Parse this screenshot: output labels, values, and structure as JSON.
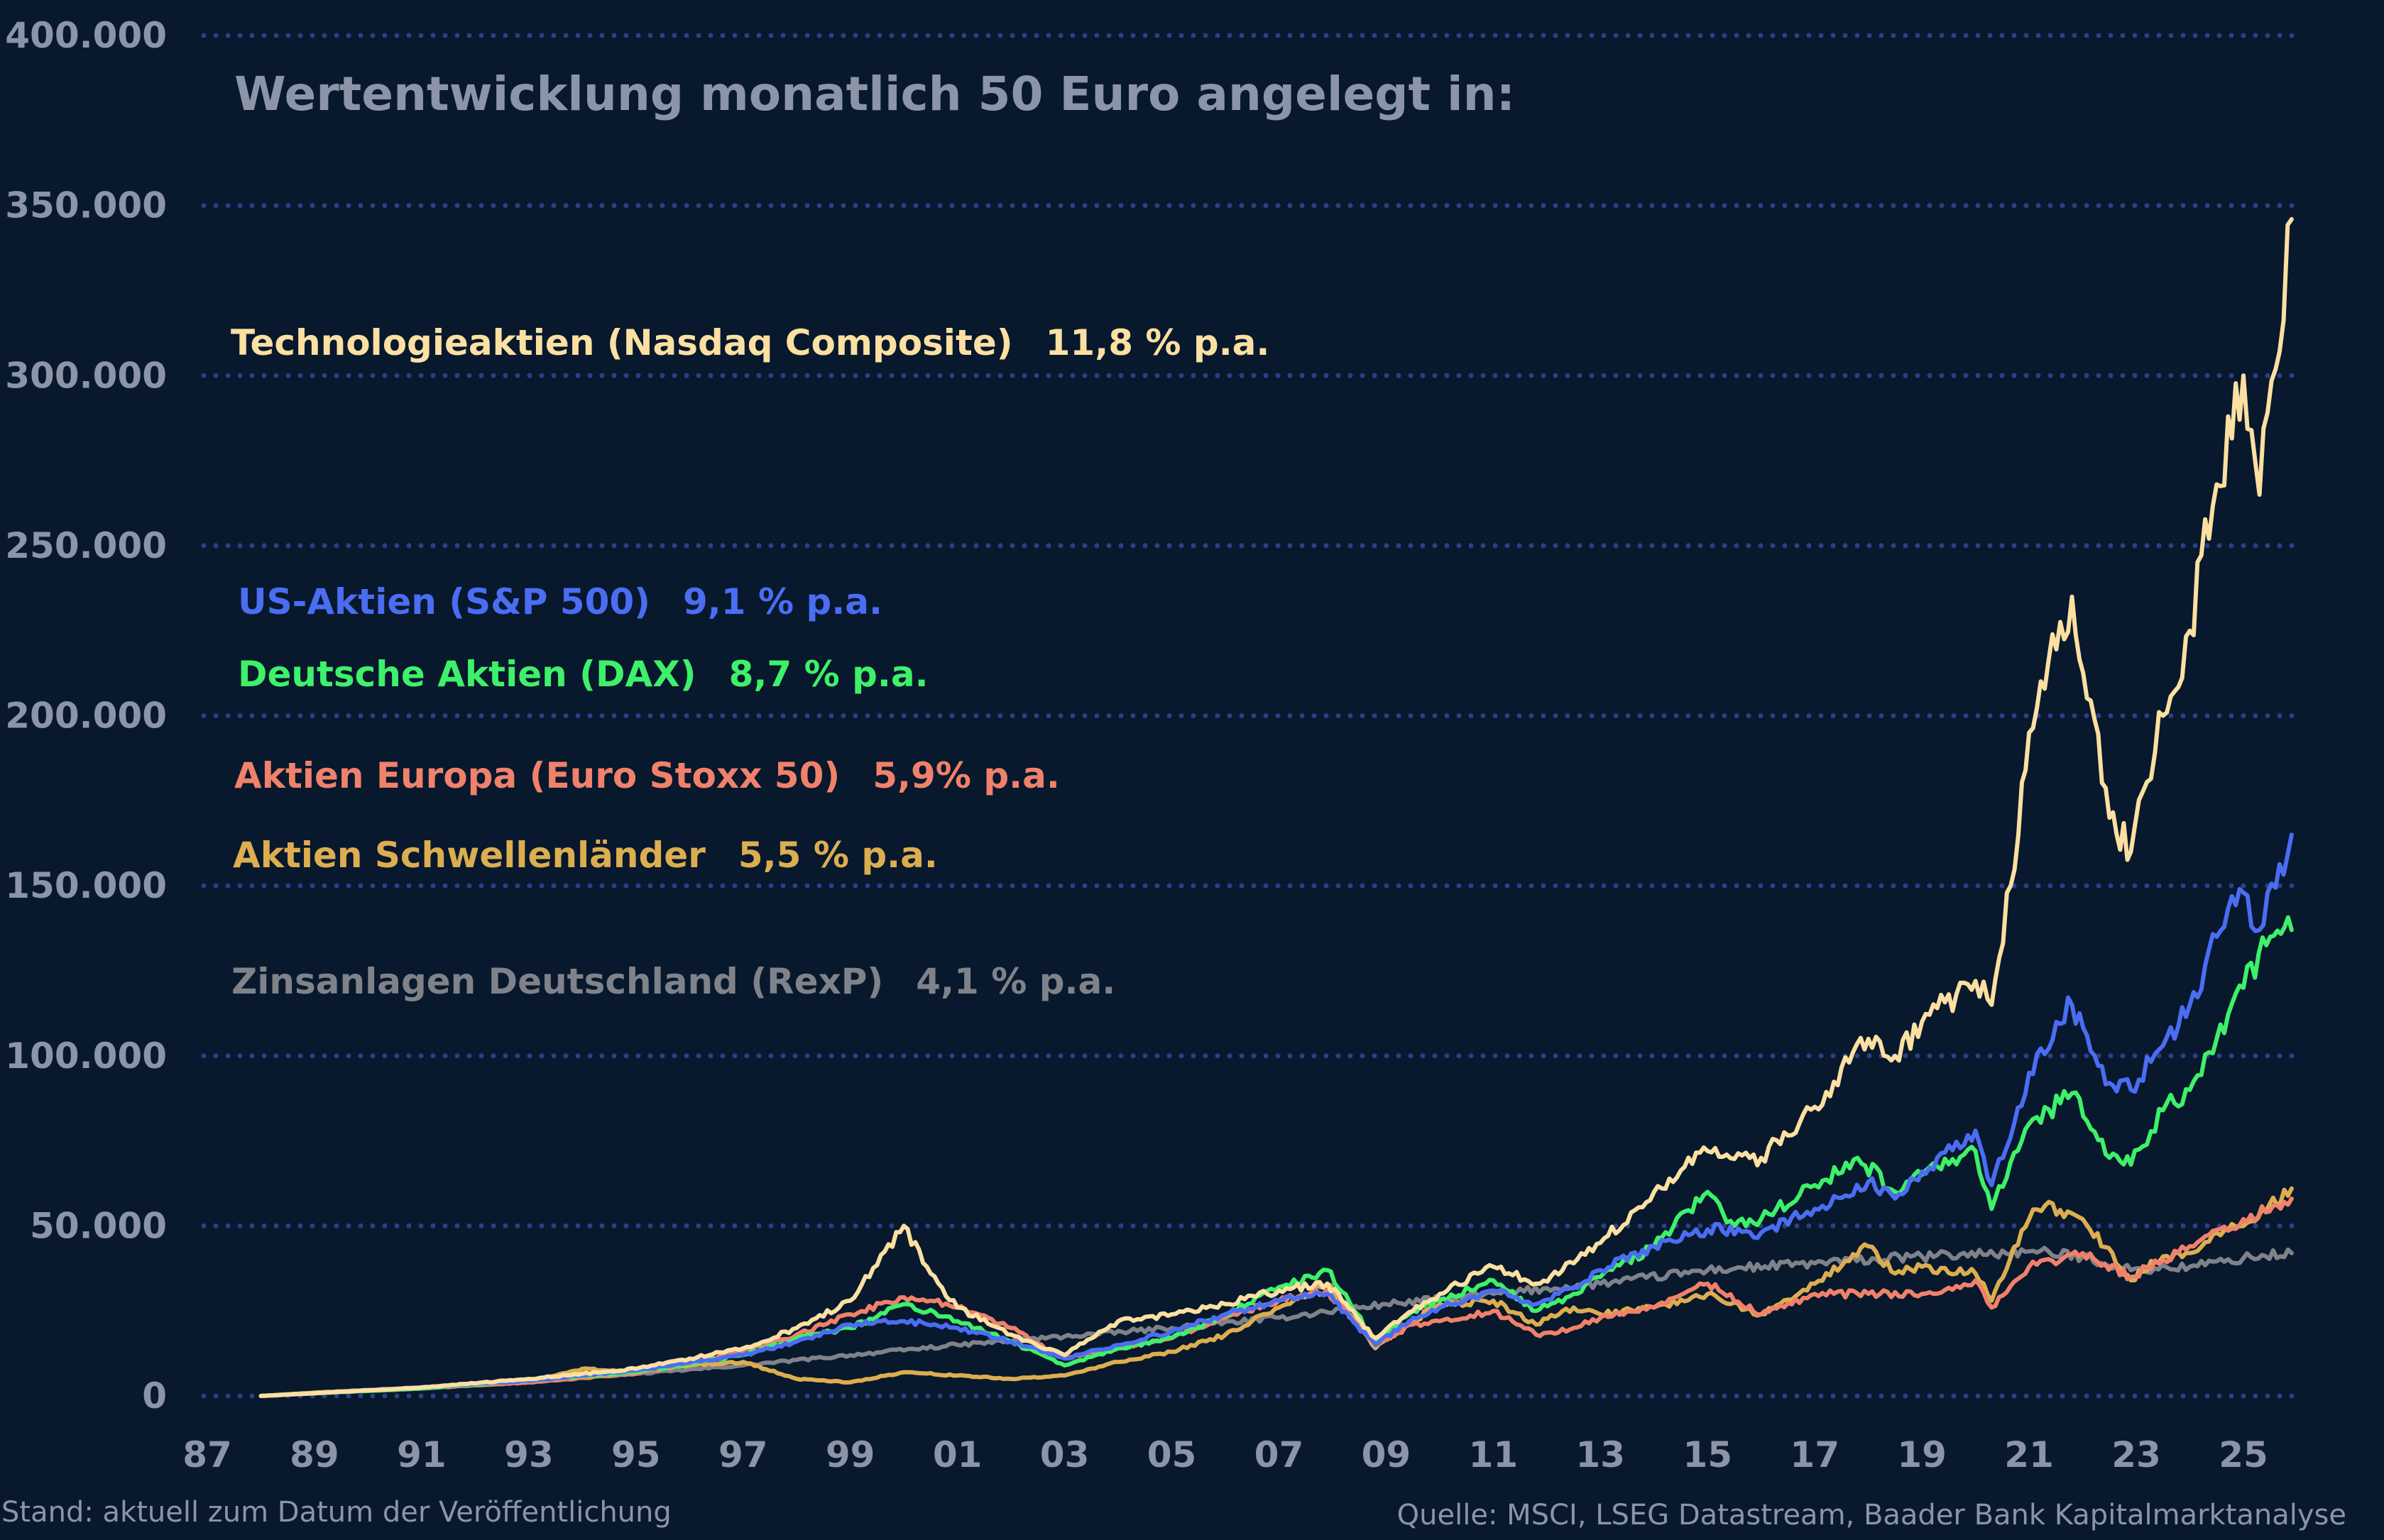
{
  "chart_data": {
    "type": "line",
    "title": "Wertentwicklung monatlich 50 Euro angelegt in:",
    "xlabel": "",
    "ylabel": "",
    "xlim": [
      1987.5,
      2026.9
    ],
    "ylim": [
      0,
      400000
    ],
    "y_ticks": [
      "0",
      "50.000",
      "100.000",
      "150.000",
      "200.000",
      "250.000",
      "300.000",
      "350.000",
      "400.000"
    ],
    "y_tick_values": [
      0,
      50000,
      100000,
      150000,
      200000,
      250000,
      300000,
      350000,
      400000
    ],
    "x_ticks": [
      "87",
      "89",
      "91",
      "93",
      "95",
      "97",
      "99",
      "01",
      "03",
      "05",
      "07",
      "09",
      "11",
      "13",
      "15",
      "17",
      "19",
      "21",
      "23",
      "25"
    ],
    "x_tick_values": [
      1987,
      1989,
      1991,
      1993,
      1995,
      1997,
      1999,
      2001,
      2003,
      2005,
      2007,
      2009,
      2011,
      2013,
      2015,
      2017,
      2019,
      2021,
      2023,
      2025
    ],
    "grid": true,
    "series": [
      {
        "name": "Zinsanlagen Deutschland (RexP)",
        "rate": "4,1 % p.a.",
        "color": "#7f8389",
        "points": [
          [
            1988,
            0
          ],
          [
            1989,
            800
          ],
          [
            1991,
            2500
          ],
          [
            1993,
            4500
          ],
          [
            1995,
            6500
          ],
          [
            1997,
            9000
          ],
          [
            1999,
            12000
          ],
          [
            2001,
            15000
          ],
          [
            2003,
            17500
          ],
          [
            2005,
            20000
          ],
          [
            2007,
            23000
          ],
          [
            2009,
            27000
          ],
          [
            2011,
            30000
          ],
          [
            2013,
            33000
          ],
          [
            2015,
            37000
          ],
          [
            2017,
            39000
          ],
          [
            2019,
            41000
          ],
          [
            2021,
            42500
          ],
          [
            2022,
            41000
          ],
          [
            2022.9,
            37000
          ],
          [
            2024,
            38000
          ],
          [
            2025,
            40500
          ],
          [
            2025.9,
            42000
          ]
        ]
      },
      {
        "name": "Aktien Schwellenländer",
        "rate": "5,5 % p.a.",
        "color": "#dcae50",
        "points": [
          [
            1988,
            0
          ],
          [
            1989,
            1000
          ],
          [
            1991,
            2500
          ],
          [
            1993,
            4000
          ],
          [
            1994,
            8000
          ],
          [
            1995,
            7000
          ],
          [
            1996,
            9000
          ],
          [
            1997,
            10000
          ],
          [
            1998,
            5000
          ],
          [
            1999,
            4000
          ],
          [
            2000,
            7000
          ],
          [
            2001,
            6000
          ],
          [
            2002,
            5000
          ],
          [
            2003,
            6000
          ],
          [
            2004,
            10000
          ],
          [
            2005,
            13000
          ],
          [
            2006,
            18000
          ],
          [
            2007,
            26000
          ],
          [
            2007.9,
            33000
          ],
          [
            2008.8,
            14000
          ],
          [
            2009.5,
            22000
          ],
          [
            2010,
            27000
          ],
          [
            2011,
            28000
          ],
          [
            2011.8,
            21000
          ],
          [
            2012.5,
            26000
          ],
          [
            2013,
            24000
          ],
          [
            2014,
            26000
          ],
          [
            2015,
            30000
          ],
          [
            2016,
            24000
          ],
          [
            2017,
            33000
          ],
          [
            2018,
            44000
          ],
          [
            2018.5,
            36000
          ],
          [
            2019,
            38000
          ],
          [
            2020,
            36000
          ],
          [
            2020.3,
            28000
          ],
          [
            2021,
            52000
          ],
          [
            2021.3,
            56000
          ],
          [
            2022,
            52000
          ],
          [
            2022.9,
            34000
          ],
          [
            2023.5,
            41000
          ],
          [
            2024,
            42000
          ],
          [
            2024.5,
            48000
          ],
          [
            2025,
            50000
          ],
          [
            2025.9,
            61000
          ]
        ]
      },
      {
        "name": "Aktien Europa (Euro Stoxx 50)",
        "rate": "5,9% p.a.",
        "color": "#f0816a",
        "points": [
          [
            1988,
            0
          ],
          [
            1989,
            800
          ],
          [
            1991,
            2200
          ],
          [
            1993,
            4000
          ],
          [
            1995,
            6500
          ],
          [
            1997,
            13000
          ],
          [
            1998,
            18000
          ],
          [
            1999,
            24000
          ],
          [
            2000,
            29000
          ],
          [
            2000.5,
            28000
          ],
          [
            2001,
            26000
          ],
          [
            2002,
            20000
          ],
          [
            2003,
            11000
          ],
          [
            2004,
            14000
          ],
          [
            2005,
            17000
          ],
          [
            2006,
            23000
          ],
          [
            2007,
            28000
          ],
          [
            2007.9,
            31000
          ],
          [
            2008.8,
            15000
          ],
          [
            2009.5,
            21000
          ],
          [
            2010,
            22000
          ],
          [
            2011,
            25000
          ],
          [
            2011.8,
            18000
          ],
          [
            2012.5,
            20000
          ],
          [
            2013,
            23000
          ],
          [
            2014,
            26000
          ],
          [
            2015,
            33000
          ],
          [
            2016,
            24000
          ],
          [
            2017,
            30000
          ],
          [
            2018,
            30000
          ],
          [
            2019,
            30000
          ],
          [
            2020,
            34000
          ],
          [
            2020.3,
            26000
          ],
          [
            2021,
            38000
          ],
          [
            2022,
            42000
          ],
          [
            2022.9,
            35000
          ],
          [
            2023.5,
            40000
          ],
          [
            2024,
            44000
          ],
          [
            2025,
            52000
          ],
          [
            2025.9,
            58000
          ]
        ]
      },
      {
        "name": "Deutsche Aktien (DAX)",
        "rate": "8,7 % p.a.",
        "color": "#3ef06a",
        "points": [
          [
            1988,
            0
          ],
          [
            1989,
            800
          ],
          [
            1991,
            2200
          ],
          [
            1993,
            4500
          ],
          [
            1995,
            7000
          ],
          [
            1997,
            12000
          ],
          [
            1998,
            17000
          ],
          [
            1999,
            20000
          ],
          [
            2000,
            27000
          ],
          [
            2001,
            22000
          ],
          [
            2002,
            16000
          ],
          [
            2003,
            9000
          ],
          [
            2004,
            14000
          ],
          [
            2005,
            17000
          ],
          [
            2006,
            24000
          ],
          [
            2007,
            32000
          ],
          [
            2007.9,
            37000
          ],
          [
            2008.8,
            16000
          ],
          [
            2009.5,
            25000
          ],
          [
            2010,
            28000
          ],
          [
            2011,
            34000
          ],
          [
            2011.8,
            25000
          ],
          [
            2012.5,
            30000
          ],
          [
            2013,
            35000
          ],
          [
            2014,
            44000
          ],
          [
            2015,
            60000
          ],
          [
            2015.5,
            50000
          ],
          [
            2016,
            52000
          ],
          [
            2017,
            62000
          ],
          [
            2017.8,
            70000
          ],
          [
            2018.5,
            60000
          ],
          [
            2019,
            65000
          ],
          [
            2020,
            72000
          ],
          [
            2020.3,
            55000
          ],
          [
            2021,
            80000
          ],
          [
            2021.8,
            89000
          ],
          [
            2022.5,
            70000
          ],
          [
            2022.9,
            68000
          ],
          [
            2023.5,
            84000
          ],
          [
            2024,
            90000
          ],
          [
            2024.5,
            105000
          ],
          [
            2025,
            120000
          ],
          [
            2025.5,
            135000
          ],
          [
            2025.9,
            137000
          ]
        ]
      },
      {
        "name": "US-Aktien (S&P 500)",
        "rate": "9,1 % p.a.",
        "color": "#4a6df2",
        "points": [
          [
            1988,
            0
          ],
          [
            1989,
            800
          ],
          [
            1991,
            2500
          ],
          [
            1993,
            4500
          ],
          [
            1995,
            7500
          ],
          [
            1997,
            12000
          ],
          [
            1998,
            16000
          ],
          [
            1999,
            21000
          ],
          [
            2000,
            22000
          ],
          [
            2001,
            20000
          ],
          [
            2002,
            16000
          ],
          [
            2003,
            11000
          ],
          [
            2004,
            15000
          ],
          [
            2005,
            19000
          ],
          [
            2006,
            24000
          ],
          [
            2007,
            28000
          ],
          [
            2007.9,
            30000
          ],
          [
            2008.8,
            15000
          ],
          [
            2009.5,
            23000
          ],
          [
            2010,
            26000
          ],
          [
            2011,
            31000
          ],
          [
            2011.8,
            27000
          ],
          [
            2012.5,
            32000
          ],
          [
            2013,
            37000
          ],
          [
            2014,
            44000
          ],
          [
            2015,
            49000
          ],
          [
            2016,
            48000
          ],
          [
            2017,
            55000
          ],
          [
            2018,
            63000
          ],
          [
            2018.5,
            58000
          ],
          [
            2019,
            66000
          ],
          [
            2020,
            78000
          ],
          [
            2020.3,
            62000
          ],
          [
            2021,
            95000
          ],
          [
            2021.8,
            115000
          ],
          [
            2022.5,
            92000
          ],
          [
            2022.9,
            90000
          ],
          [
            2023.5,
            103000
          ],
          [
            2024,
            115000
          ],
          [
            2024.5,
            135000
          ],
          [
            2025,
            148000
          ],
          [
            2025.3,
            137000
          ],
          [
            2025.9,
            165000
          ]
        ]
      },
      {
        "name": "Technologieaktien (Nasdaq Composite)",
        "rate": "11,8 % p.a.",
        "color": "#fbe0a2",
        "points": [
          [
            1988,
            0
          ],
          [
            1989,
            800
          ],
          [
            1991,
            2500
          ],
          [
            1993,
            5000
          ],
          [
            1995,
            8000
          ],
          [
            1997,
            14000
          ],
          [
            1998,
            20000
          ],
          [
            1999,
            28000
          ],
          [
            2000,
            50000
          ],
          [
            2000.5,
            36000
          ],
          [
            2001,
            26000
          ],
          [
            2002,
            18000
          ],
          [
            2003,
            12000
          ],
          [
            2004,
            22000
          ],
          [
            2005,
            24000
          ],
          [
            2006,
            27000
          ],
          [
            2007,
            31000
          ],
          [
            2007.9,
            33000
          ],
          [
            2008.8,
            17000
          ],
          [
            2009.5,
            25000
          ],
          [
            2010,
            30000
          ],
          [
            2011,
            38000
          ],
          [
            2011.8,
            33000
          ],
          [
            2012.5,
            39000
          ],
          [
            2013,
            45000
          ],
          [
            2014,
            60000
          ],
          [
            2015,
            72000
          ],
          [
            2016,
            70000
          ],
          [
            2017,
            85000
          ],
          [
            2018,
            105000
          ],
          [
            2018.5,
            100000
          ],
          [
            2019,
            110000
          ],
          [
            2020,
            122000
          ],
          [
            2020.3,
            115000
          ],
          [
            2020.8,
            165000
          ],
          [
            2021,
            195000
          ],
          [
            2021.8,
            235000
          ],
          [
            2022.5,
            170000
          ],
          [
            2022.9,
            160000
          ],
          [
            2023.5,
            200000
          ],
          [
            2024,
            225000
          ],
          [
            2024.5,
            268000
          ],
          [
            2025,
            300000
          ],
          [
            2025.3,
            265000
          ],
          [
            2025.9,
            346000
          ]
        ]
      }
    ],
    "legend_order": [
      5,
      4,
      3,
      2,
      1,
      0
    ]
  },
  "footer": {
    "left": "Stand: aktuell zum Datum der Veröffentlichung",
    "right": "Quelle: MSCI, LSEG Datastream, Baader Bank Kapitalmarktanalyse"
  }
}
